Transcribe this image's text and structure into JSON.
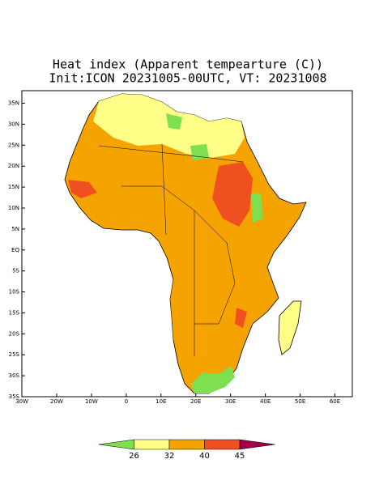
{
  "map": {
    "title": "Heat index (Apparent tempearture (C))",
    "subtitle": "Init:ICON 20231005-00UTC, VT: 20231008",
    "lon_ticks": [
      {
        "value": -30,
        "label": "30W"
      },
      {
        "value": -20,
        "label": "20W"
      },
      {
        "value": -10,
        "label": "10W"
      },
      0,
      {
        "value": 10,
        "label": "10E"
      },
      {
        "value": 20,
        "label": "20E"
      },
      {
        "value": 30,
        "label": "30E"
      },
      {
        "value": 40,
        "label": "40E"
      },
      {
        "value": 50,
        "label": "50E"
      },
      {
        "value": 60,
        "label": "60E"
      }
    ],
    "lat_ticks": [
      {
        "value": 35,
        "label": "35N"
      },
      {
        "value": 30,
        "label": "30N"
      },
      {
        "value": 25,
        "label": "25N"
      },
      {
        "value": 20,
        "label": "20N"
      },
      {
        "value": 15,
        "label": "15N"
      },
      {
        "value": 10,
        "label": "10N"
      },
      {
        "value": 5,
        "label": "5N"
      },
      {
        "value": 0,
        "label": "EQ"
      },
      {
        "value": -5,
        "label": "5S"
      },
      {
        "value": -10,
        "label": "10S"
      },
      {
        "value": -15,
        "label": "15S"
      },
      {
        "value": -20,
        "label": "20S"
      },
      {
        "value": -25,
        "label": "25S"
      },
      {
        "value": -30,
        "label": "30S"
      },
      {
        "value": -35,
        "label": "35S"
      }
    ],
    "xlim": [
      -30,
      65
    ],
    "ylim": [
      -35,
      38
    ],
    "colorbar": {
      "ticks": [
        26,
        32,
        40,
        45
      ],
      "colors": [
        "#7ee050",
        "#ffff88",
        "#f4a300",
        "#f05020",
        "#a0004a"
      ]
    }
  }
}
